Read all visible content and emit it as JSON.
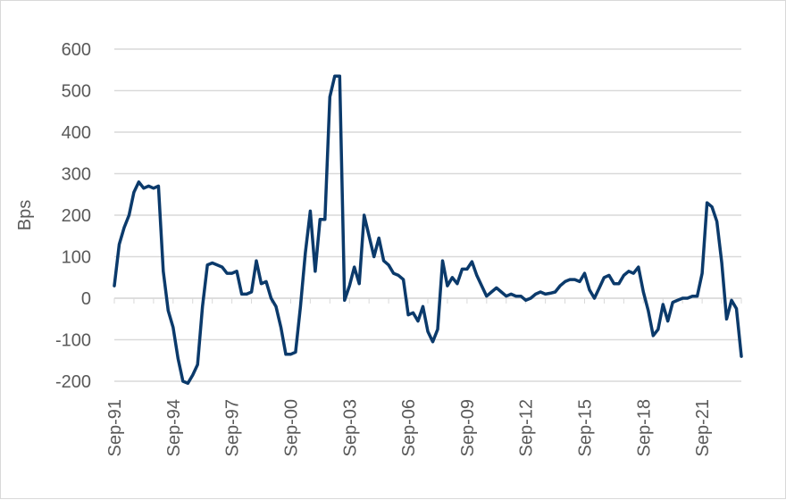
{
  "chart_data": {
    "type": "line",
    "title": "",
    "xlabel": "",
    "ylabel": "Bps",
    "ylim": [
      -200,
      600
    ],
    "yticks": [
      -200,
      -100,
      0,
      100,
      200,
      300,
      400,
      500,
      600
    ],
    "xtick_labels": [
      "Sep-91",
      "Sep-94",
      "Sep-97",
      "Sep-00",
      "Sep-03",
      "Sep-06",
      "Sep-09",
      "Sep-12",
      "Sep-15",
      "Sep-18",
      "Sep-21"
    ],
    "grid": true,
    "legend": "none",
    "line_color": "#0b3a6b",
    "series": [
      {
        "x": [
          1991.75,
          1992.0,
          1992.25,
          1992.5,
          1992.75,
          1993.0,
          1993.25,
          1993.5,
          1993.75,
          1994.0,
          1994.25,
          1994.5,
          1994.75,
          1995.0,
          1995.25,
          1995.5,
          1995.75,
          1996.0,
          1996.25,
          1996.5,
          1996.75,
          1997.0,
          1997.25,
          1997.5,
          1997.75,
          1998.0,
          1998.25,
          1998.5,
          1998.75,
          1999.0,
          1999.25,
          1999.5,
          1999.75,
          2000.0,
          2000.25,
          2000.5,
          2000.75,
          2001.0,
          2001.25,
          2001.5,
          2001.75,
          2002.0,
          2002.25,
          2002.5,
          2002.75,
          2003.0,
          2003.25,
          2003.5,
          2003.75,
          2004.0,
          2004.25,
          2004.5,
          2004.75,
          2005.0,
          2005.25,
          2005.5,
          2005.75,
          2006.0,
          2006.25,
          2006.5,
          2006.75,
          2007.0,
          2007.25,
          2007.5,
          2007.75,
          2008.0,
          2008.25,
          2008.5,
          2008.75,
          2009.0,
          2009.25,
          2009.5,
          2009.75,
          2010.0,
          2010.25,
          2010.5,
          2010.75,
          2011.0,
          2011.25,
          2011.5,
          2011.75,
          2012.0,
          2012.25,
          2012.5,
          2012.75,
          2013.0,
          2013.25,
          2013.5,
          2013.75,
          2014.0,
          2014.25,
          2014.5,
          2014.75,
          2015.0,
          2015.25,
          2015.5,
          2015.75,
          2016.0,
          2016.25,
          2016.5,
          2016.75,
          2017.0,
          2017.25,
          2017.5,
          2017.75,
          2018.0,
          2018.25,
          2018.5,
          2018.75,
          2019.0,
          2019.25,
          2019.5,
          2019.75,
          2020.0,
          2020.25,
          2020.5,
          2020.75,
          2021.0,
          2021.25,
          2021.5,
          2021.75,
          2022.0,
          2022.25,
          2022.5,
          2022.75,
          2023.0,
          2023.25,
          2023.5,
          2023.75
        ],
        "values": [
          30,
          130,
          170,
          200,
          255,
          280,
          265,
          270,
          265,
          270,
          65,
          -30,
          -70,
          -145,
          -200,
          -205,
          -185,
          -160,
          -20,
          80,
          85,
          80,
          75,
          60,
          60,
          65,
          10,
          10,
          15,
          90,
          35,
          40,
          0,
          -20,
          -70,
          -135,
          -135,
          -130,
          -20,
          110,
          210,
          65,
          190,
          190,
          485,
          535,
          535,
          -5,
          30,
          75,
          35,
          200,
          150,
          100,
          145,
          90,
          80,
          60,
          55,
          45,
          -40,
          -35,
          -55,
          -20,
          -80,
          -105,
          -75,
          90,
          30,
          50,
          35,
          70,
          70,
          88,
          55,
          30,
          5,
          15,
          25,
          15,
          5,
          10,
          5,
          5,
          -5,
          0,
          10,
          15,
          10,
          12,
          15,
          30,
          40,
          45,
          45,
          40,
          60,
          20,
          0,
          25,
          50,
          55,
          35,
          35,
          55,
          65,
          60,
          75,
          15,
          -30,
          -90,
          -75,
          -15,
          -55,
          -10,
          -5,
          0,
          0,
          5,
          5,
          60,
          230,
          220,
          185,
          85,
          -50,
          -5,
          -25,
          -140
        ]
      }
    ]
  }
}
